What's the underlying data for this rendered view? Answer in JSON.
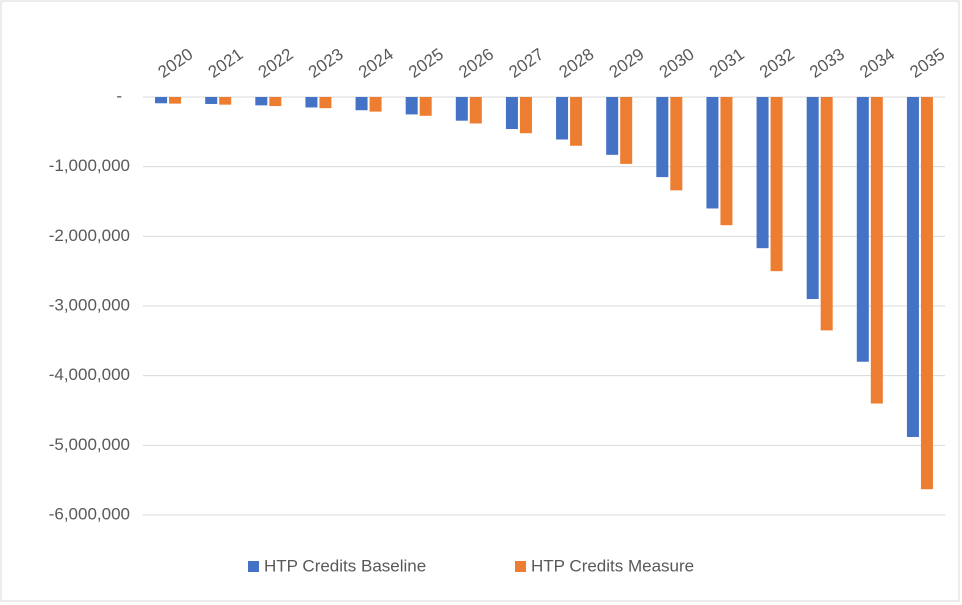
{
  "chart_data": {
    "type": "bar",
    "categories": [
      "2020",
      "2021",
      "2022",
      "2023",
      "2024",
      "2025",
      "2026",
      "2027",
      "2028",
      "2029",
      "2030",
      "2031",
      "2032",
      "2033",
      "2034",
      "2035"
    ],
    "series": [
      {
        "name": "HTP Credits Baseline",
        "color": "#4472c4",
        "values": [
          -90000,
          -100000,
          -120000,
          -150000,
          -190000,
          -250000,
          -340000,
          -460000,
          -610000,
          -830000,
          -1150000,
          -1600000,
          -2170000,
          -2900000,
          -3800000,
          -4880000
        ]
      },
      {
        "name": "HTP Credits Measure",
        "color": "#ed7d31",
        "values": [
          -95000,
          -110000,
          -130000,
          -160000,
          -210000,
          -270000,
          -380000,
          -520000,
          -700000,
          -960000,
          -1340000,
          -1840000,
          -2500000,
          -3350000,
          -4400000,
          -5630000
        ]
      }
    ],
    "ylim": [
      -6000000,
      0
    ],
    "yticks": [
      {
        "value": 0,
        "label": "-"
      },
      {
        "value": -1000000,
        "label": "-1,000,000"
      },
      {
        "value": -2000000,
        "label": "-2,000,000"
      },
      {
        "value": -3000000,
        "label": "-3,000,000"
      },
      {
        "value": -4000000,
        "label": "-4,000,000"
      },
      {
        "value": -5000000,
        "label": "-5,000,000"
      },
      {
        "value": -6000000,
        "label": "-6,000,000"
      }
    ],
    "grid": true,
    "legend": "bottom"
  }
}
